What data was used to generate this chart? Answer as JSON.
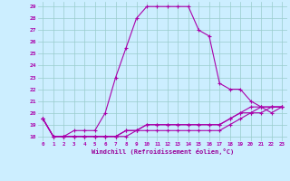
{
  "background_color": "#cceeff",
  "grid_color": "#99cccc",
  "line_color": "#aa00aa",
  "xlabel": "Windchill (Refroidissement éolien,°C)",
  "xlabel_color": "#990099",
  "ylabel_values": [
    18,
    19,
    20,
    21,
    22,
    23,
    24,
    25,
    26,
    27,
    28,
    29
  ],
  "xlim": [
    -0.5,
    23.5
  ],
  "ylim": [
    17.6,
    29.4
  ],
  "xtick_labels": [
    "0",
    "1",
    "2",
    "3",
    "4",
    "5",
    "6",
    "7",
    "8",
    "9",
    "10",
    "11",
    "12",
    "13",
    "14",
    "15",
    "16",
    "17",
    "18",
    "19",
    "20",
    "21",
    "22",
    "23"
  ],
  "series": [
    [
      19.5,
      18.0,
      18.0,
      18.5,
      18.5,
      18.5,
      20.0,
      23.0,
      25.5,
      28.0,
      29.0,
      29.0,
      29.0,
      29.0,
      29.0,
      27.0,
      26.5,
      22.5,
      22.0,
      22.0,
      21.0,
      20.5,
      20.0,
      20.5
    ],
    [
      19.5,
      18.0,
      18.0,
      18.0,
      18.0,
      18.0,
      18.0,
      18.0,
      18.0,
      18.5,
      19.0,
      19.0,
      19.0,
      19.0,
      19.0,
      19.0,
      19.0,
      19.0,
      19.5,
      20.0,
      20.5,
      20.5,
      20.5,
      20.5
    ],
    [
      19.5,
      18.0,
      18.0,
      18.0,
      18.0,
      18.0,
      18.0,
      18.0,
      18.5,
      18.5,
      19.0,
      19.0,
      19.0,
      19.0,
      19.0,
      19.0,
      19.0,
      19.0,
      19.5,
      20.0,
      20.0,
      20.5,
      20.5,
      20.5
    ],
    [
      19.5,
      18.0,
      18.0,
      18.0,
      18.0,
      18.0,
      18.0,
      18.0,
      18.5,
      18.5,
      18.5,
      18.5,
      18.5,
      18.5,
      18.5,
      18.5,
      18.5,
      18.5,
      19.0,
      19.5,
      20.0,
      20.0,
      20.5,
      20.5
    ]
  ]
}
